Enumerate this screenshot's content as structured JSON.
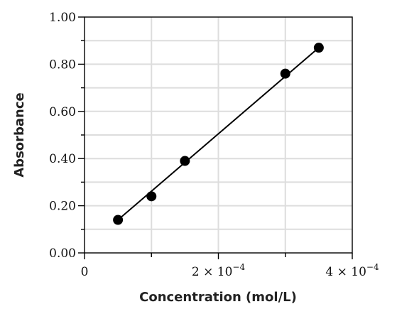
{
  "chart_data": {
    "type": "scatter",
    "title": "",
    "xlabel": "Concentration (mol/L)",
    "ylabel": "Absorbance",
    "xlim": [
      0,
      0.0004
    ],
    "ylim": [
      0,
      1.0
    ],
    "grid": true,
    "legend": "none",
    "x_ticks": [
      {
        "value": 0,
        "label": "0"
      },
      {
        "value": 0.0002,
        "label": "2 × 10−4"
      },
      {
        "value": 0.0004,
        "label": "4 × 10−4"
      }
    ],
    "x_minor_ticks": [
      0.0001,
      0.0003
    ],
    "y_ticks": [
      {
        "value": 0.0,
        "label": "0.00"
      },
      {
        "value": 0.2,
        "label": "0.20"
      },
      {
        "value": 0.4,
        "label": "0.40"
      },
      {
        "value": 0.6,
        "label": "0.60"
      },
      {
        "value": 0.8,
        "label": "0.80"
      },
      {
        "value": 1.0,
        "label": "1.00"
      }
    ],
    "y_minor_ticks": [
      0.1,
      0.3,
      0.5,
      0.7,
      0.9
    ],
    "series": [
      {
        "points": [
          {
            "x": 5e-05,
            "y": 0.14
          },
          {
            "x": 0.0001,
            "y": 0.24
          },
          {
            "x": 0.00015,
            "y": 0.39
          },
          {
            "x": 0.0003,
            "y": 0.76
          },
          {
            "x": 0.00035,
            "y": 0.87
          }
        ],
        "color": "#000000"
      }
    ],
    "fit_line": {
      "x": [
        5e-05,
        0.00035
      ],
      "y": [
        0.14,
        0.87
      ],
      "color": "#000000"
    }
  }
}
